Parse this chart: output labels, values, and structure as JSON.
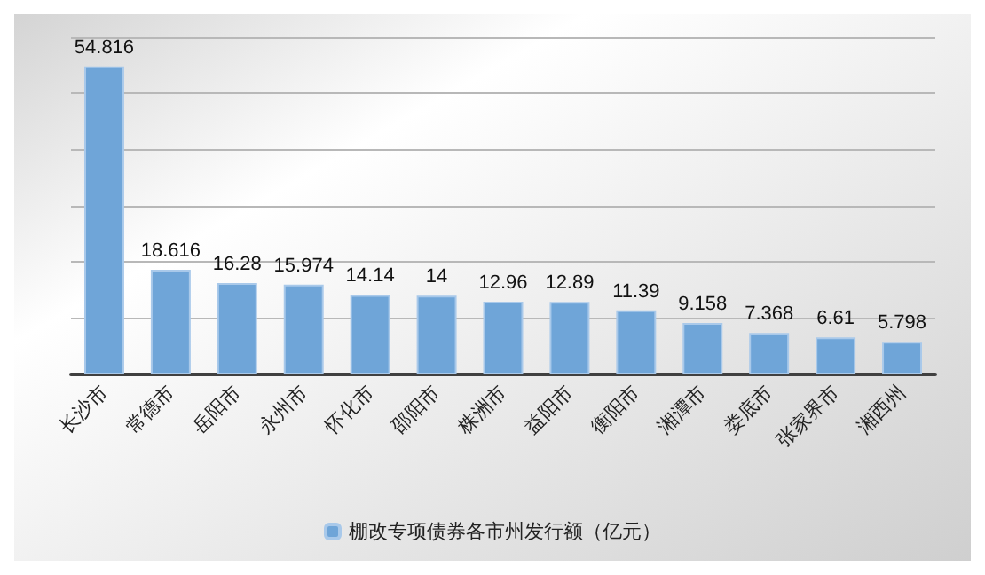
{
  "chart_data": {
    "type": "bar",
    "categories": [
      "长沙市",
      "常德市",
      "岳阳市",
      "永州市",
      "怀化市",
      "邵阳市",
      "株洲市",
      "益阳市",
      "衡阳市",
      "湘潭市",
      "娄底市",
      "张家界市",
      "湘西州"
    ],
    "series": [
      {
        "name": "棚改专项债券各市州发行额（亿元）",
        "color": "#6fa5d8",
        "values": [
          54.816,
          18.616,
          16.28,
          15.974,
          14.14,
          14,
          12.96,
          12.89,
          11.39,
          9.158,
          7.368,
          6.61,
          5.798
        ]
      }
    ],
    "ylim": [
      0,
      60
    ],
    "yticks": [
      {
        "value": 0,
        "label": null
      },
      {
        "value": 10,
        "label": null
      },
      {
        "value": 20,
        "label": null
      },
      {
        "value": 30,
        "label": null
      },
      {
        "value": 40,
        "label": null
      },
      {
        "value": 50,
        "label": null
      },
      {
        "value": 60,
        "label": null
      }
    ],
    "tick_labels": "x",
    "grid": "y",
    "legend": "bottom",
    "data_labels": true
  }
}
